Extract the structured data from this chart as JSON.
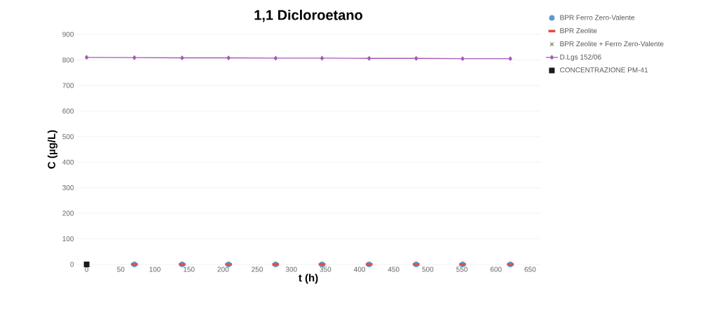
{
  "chart_data": {
    "type": "scatter",
    "title": "1,1 Dicloroetano",
    "xlabel": "t (h)",
    "ylabel": "C (µg/L)",
    "xlim": [
      -15,
      665
    ],
    "xticks": [
      0,
      50,
      100,
      150,
      200,
      250,
      300,
      350,
      400,
      450,
      500,
      550,
      600,
      650
    ],
    "ylim": [
      0,
      900
    ],
    "yticks": [
      0,
      100,
      200,
      300,
      400,
      500,
      600,
      700,
      800,
      900
    ],
    "grid": "y",
    "legend": "right",
    "series": [
      {
        "name": "BPR Ferro Zero-Valente",
        "marker": "circle",
        "color": "#5b9bd5",
        "x": [
          70,
          140,
          208,
          277,
          345,
          414,
          483,
          551,
          621
        ],
        "values": [
          0,
          0,
          0,
          0,
          0,
          0,
          0,
          0,
          0
        ]
      },
      {
        "name": "BPR Zeolite",
        "color": "#e0504a",
        "x": [
          70,
          140,
          208,
          277,
          345,
          414,
          483,
          551,
          621
        ],
        "values": [
          0,
          0,
          0,
          0,
          0,
          0,
          0,
          0,
          0
        ]
      },
      {
        "name": "BPR Zeolite + Ferro Zero-Valente",
        "marker": "cross",
        "color": "#8c9a5c",
        "x": [
          70,
          140,
          208,
          277,
          345,
          414,
          483,
          551,
          621
        ],
        "values": [
          0,
          0,
          0,
          0,
          0,
          0,
          0,
          0,
          0
        ]
      },
      {
        "name": "D.Lgs 152/06",
        "type": "line",
        "marker": "diamond",
        "line_style": "solid",
        "color": "#a45bb4",
        "x": [
          0,
          70,
          140,
          208,
          277,
          345,
          414,
          483,
          551,
          621
        ],
        "values": [
          810,
          809,
          808,
          808,
          807,
          807,
          806,
          806,
          805,
          805
        ]
      },
      {
        "name": "CONCENTRAZIONE PM-41",
        "marker": "square",
        "color": "#1a1a1a",
        "x": [
          0
        ],
        "values": [
          0
        ]
      }
    ]
  }
}
